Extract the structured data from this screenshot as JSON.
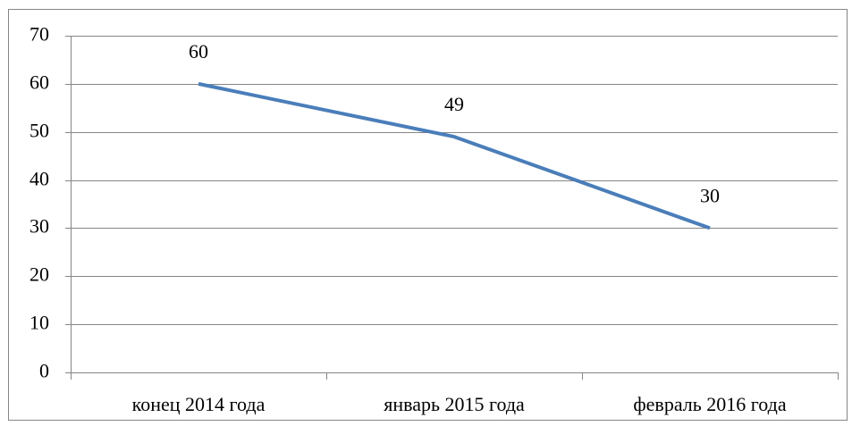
{
  "chart_data": {
    "type": "line",
    "categories": [
      "конец 2014 года",
      "январь 2015 года",
      "февраль 2016 года"
    ],
    "values": [
      60,
      49,
      30
    ],
    "color": "#4a7ebb",
    "ylim": [
      0,
      70
    ],
    "yticks": [
      0,
      10,
      20,
      30,
      40,
      50,
      60,
      70
    ],
    "grid": true
  }
}
